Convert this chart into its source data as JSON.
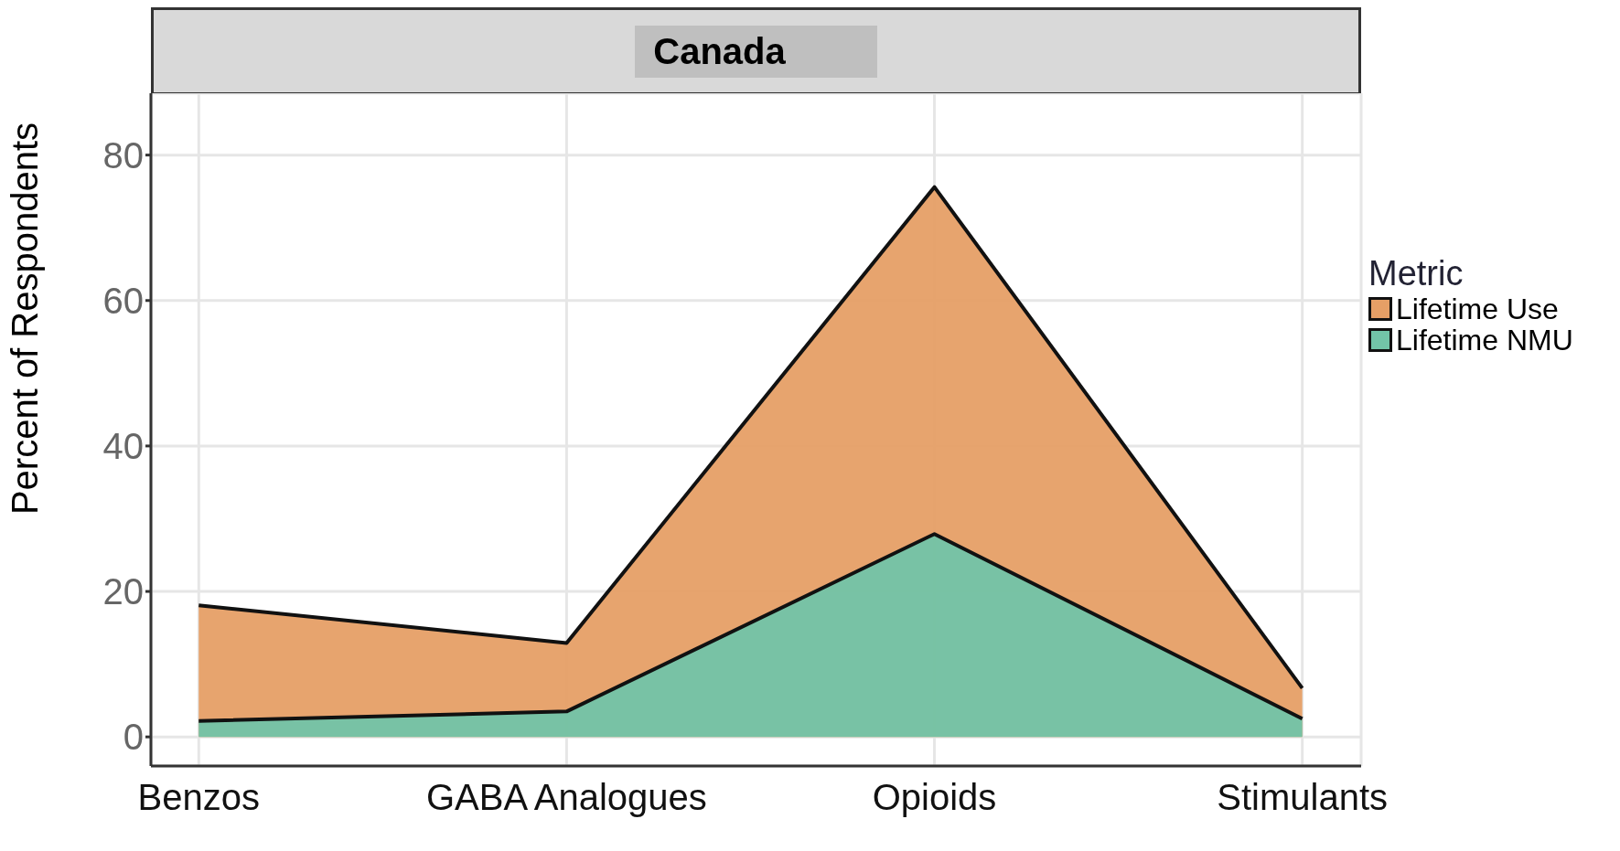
{
  "chart_data": {
    "type": "area",
    "title": "Canada",
    "ylabel": "Percent  of Respondents",
    "legend_title": "Metric",
    "categories": [
      "Benzos",
      "GABA Analogues",
      "Opioids",
      "Stimulants"
    ],
    "series": [
      {
        "name": "Lifetime Use",
        "color": "#e69f66",
        "values": [
          18.1,
          12.9,
          75.6,
          6.7
        ]
      },
      {
        "name": "Lifetime NMU",
        "color": "#72c4a8",
        "values": [
          2.2,
          3.5,
          27.9,
          2.5
        ]
      }
    ],
    "ylim": [
      -4,
      88.5
    ],
    "yticks": [
      0,
      20,
      40,
      60,
      80
    ],
    "grid": true,
    "legend": "right"
  }
}
